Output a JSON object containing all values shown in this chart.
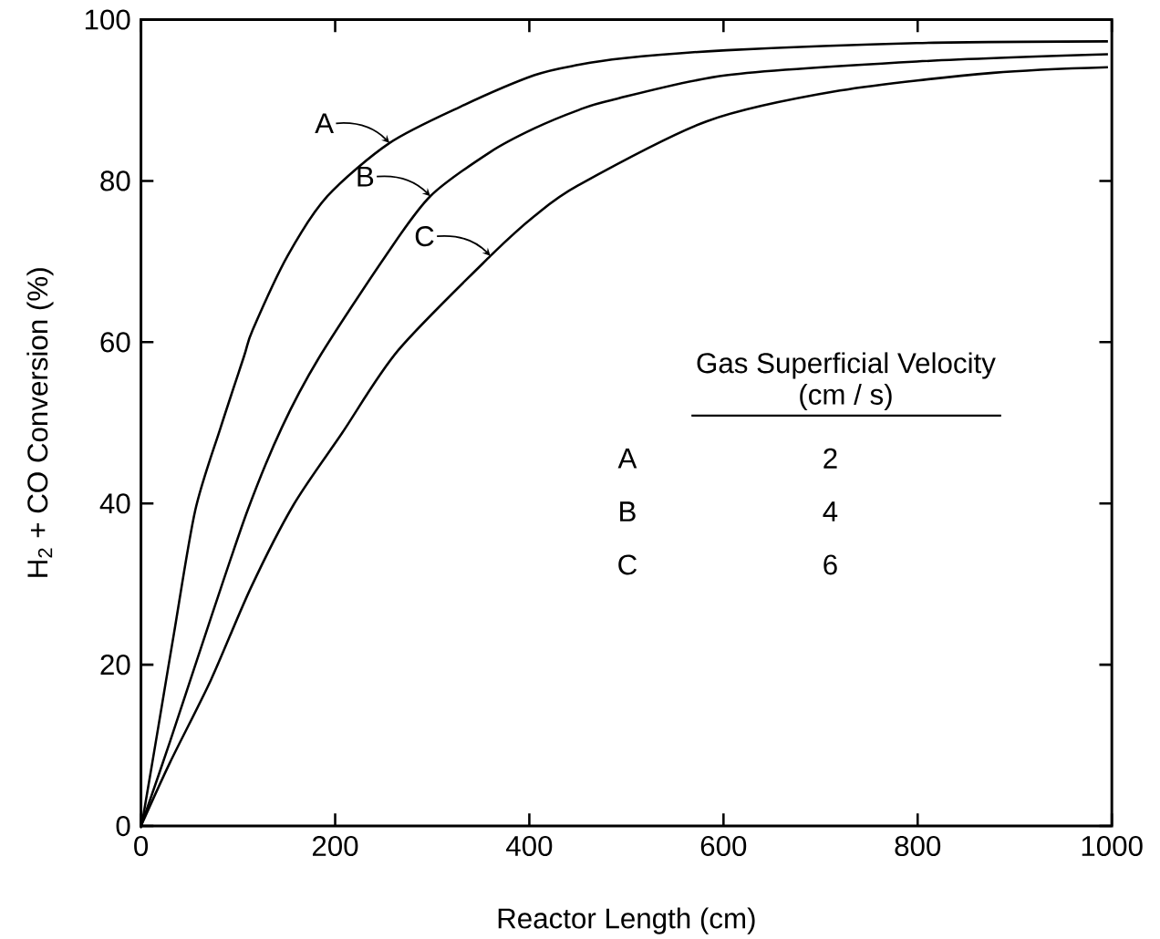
{
  "chart_data": {
    "type": "line",
    "xlabel": "Reactor Length (cm)",
    "ylabel": "H$_{2}$ + CO Conversion (%)",
    "xlim": [
      0,
      1000
    ],
    "ylim": [
      0,
      100
    ],
    "xticks": [
      0,
      200,
      400,
      600,
      800,
      1000
    ],
    "yticks": [
      0,
      20,
      40,
      60,
      80,
      100
    ],
    "grid": false,
    "marker": "none",
    "line_style": "solid",
    "series": [
      {
        "color": "#000000",
        "x": [
          0,
          2,
          18,
          34,
          56,
          82,
          106,
          115,
          151,
          192,
          256,
          329,
          405,
          451,
          496,
          603,
          799,
          996
        ],
        "values": [
          0,
          1,
          12.4,
          23.9,
          39.2,
          49.4,
          58.2,
          61.5,
          70.7,
          78.1,
          84.7,
          89.2,
          93.1,
          94.4,
          95.2,
          96.2,
          97.1,
          97.3
        ]
      },
      {
        "color": "#000000",
        "x": [
          0,
          30,
          72,
          110,
          145,
          183,
          252,
          298,
          360,
          405,
          451,
          484,
          603,
          799,
          996
        ],
        "values": [
          0,
          10.5,
          25.8,
          39.2,
          49.4,
          58.0,
          70.7,
          78.1,
          83.6,
          86.5,
          88.8,
          90.0,
          93.1,
          94.8,
          95.7
        ]
      },
      {
        "color": "#000000",
        "x": [
          0,
          30,
          72,
          113,
          157,
          207,
          265,
          360,
          405,
          451,
          583,
          720,
          878,
          996
        ],
        "values": [
          0,
          7.9,
          18.1,
          29.5,
          39.8,
          48.7,
          59.0,
          70.7,
          75.6,
          79.5,
          87.4,
          91.2,
          93.4,
          94.1
        ]
      }
    ],
    "annotations": [
      {
        "text": "A",
        "x": 256,
        "y": 84.7
      },
      {
        "text": "B",
        "x": 298,
        "y": 78.1
      },
      {
        "text": "C",
        "x": 360,
        "y": 70.7
      },
      "Gas Superficial Velocity",
      "(cm / s)",
      "A",
      "2",
      "B",
      "4",
      "C",
      "6"
    ]
  }
}
